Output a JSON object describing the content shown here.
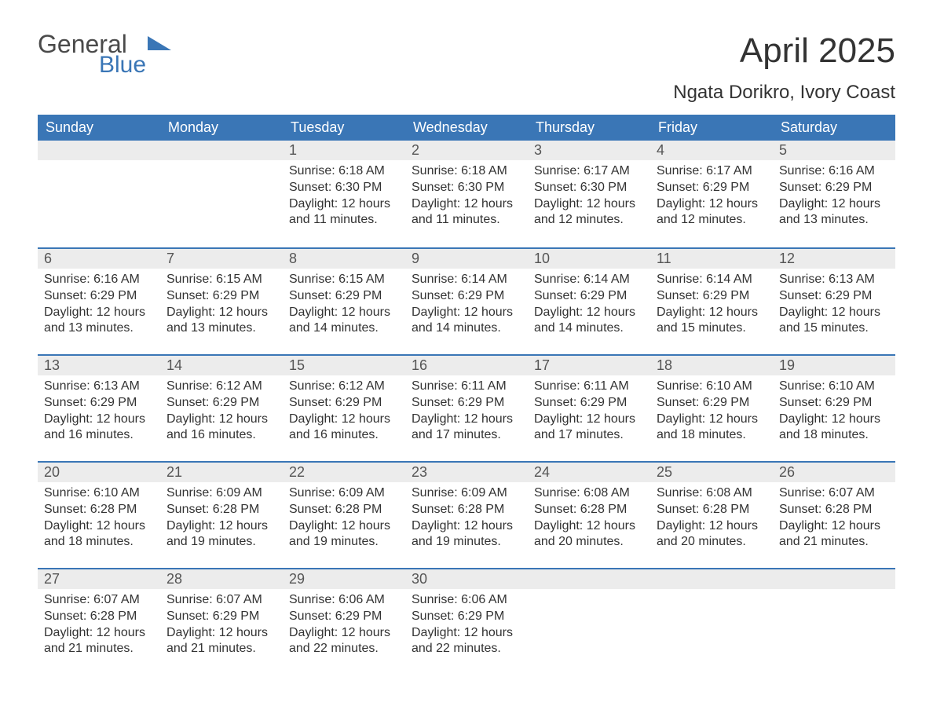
{
  "logo": {
    "text1": "General",
    "text2": "Blue",
    "shape_color": "#3a76b6"
  },
  "title": "April 2025",
  "location": "Ngata Dorikro, Ivory Coast",
  "colors": {
    "header_bg": "#3a76b6",
    "header_text": "#ffffff",
    "daynum_bg": "#ececec",
    "border_top": "#3a76b6",
    "body_text": "#333333",
    "page_bg": "#ffffff"
  },
  "typography": {
    "title_fontsize": 44,
    "subtitle_fontsize": 24,
    "header_fontsize": 18,
    "daynum_fontsize": 18,
    "body_fontsize": 16,
    "font_family": "Segoe UI"
  },
  "weekday_headers": [
    "Sunday",
    "Monday",
    "Tuesday",
    "Wednesday",
    "Thursday",
    "Friday",
    "Saturday"
  ],
  "weeks": [
    [
      null,
      null,
      {
        "day": "1",
        "sunrise": "Sunrise: 6:18 AM",
        "sunset": "Sunset: 6:30 PM",
        "daylight1": "Daylight: 12 hours",
        "daylight2": "and 11 minutes."
      },
      {
        "day": "2",
        "sunrise": "Sunrise: 6:18 AM",
        "sunset": "Sunset: 6:30 PM",
        "daylight1": "Daylight: 12 hours",
        "daylight2": "and 11 minutes."
      },
      {
        "day": "3",
        "sunrise": "Sunrise: 6:17 AM",
        "sunset": "Sunset: 6:30 PM",
        "daylight1": "Daylight: 12 hours",
        "daylight2": "and 12 minutes."
      },
      {
        "day": "4",
        "sunrise": "Sunrise: 6:17 AM",
        "sunset": "Sunset: 6:29 PM",
        "daylight1": "Daylight: 12 hours",
        "daylight2": "and 12 minutes."
      },
      {
        "day": "5",
        "sunrise": "Sunrise: 6:16 AM",
        "sunset": "Sunset: 6:29 PM",
        "daylight1": "Daylight: 12 hours",
        "daylight2": "and 13 minutes."
      }
    ],
    [
      {
        "day": "6",
        "sunrise": "Sunrise: 6:16 AM",
        "sunset": "Sunset: 6:29 PM",
        "daylight1": "Daylight: 12 hours",
        "daylight2": "and 13 minutes."
      },
      {
        "day": "7",
        "sunrise": "Sunrise: 6:15 AM",
        "sunset": "Sunset: 6:29 PM",
        "daylight1": "Daylight: 12 hours",
        "daylight2": "and 13 minutes."
      },
      {
        "day": "8",
        "sunrise": "Sunrise: 6:15 AM",
        "sunset": "Sunset: 6:29 PM",
        "daylight1": "Daylight: 12 hours",
        "daylight2": "and 14 minutes."
      },
      {
        "day": "9",
        "sunrise": "Sunrise: 6:14 AM",
        "sunset": "Sunset: 6:29 PM",
        "daylight1": "Daylight: 12 hours",
        "daylight2": "and 14 minutes."
      },
      {
        "day": "10",
        "sunrise": "Sunrise: 6:14 AM",
        "sunset": "Sunset: 6:29 PM",
        "daylight1": "Daylight: 12 hours",
        "daylight2": "and 14 minutes."
      },
      {
        "day": "11",
        "sunrise": "Sunrise: 6:14 AM",
        "sunset": "Sunset: 6:29 PM",
        "daylight1": "Daylight: 12 hours",
        "daylight2": "and 15 minutes."
      },
      {
        "day": "12",
        "sunrise": "Sunrise: 6:13 AM",
        "sunset": "Sunset: 6:29 PM",
        "daylight1": "Daylight: 12 hours",
        "daylight2": "and 15 minutes."
      }
    ],
    [
      {
        "day": "13",
        "sunrise": "Sunrise: 6:13 AM",
        "sunset": "Sunset: 6:29 PM",
        "daylight1": "Daylight: 12 hours",
        "daylight2": "and 16 minutes."
      },
      {
        "day": "14",
        "sunrise": "Sunrise: 6:12 AM",
        "sunset": "Sunset: 6:29 PM",
        "daylight1": "Daylight: 12 hours",
        "daylight2": "and 16 minutes."
      },
      {
        "day": "15",
        "sunrise": "Sunrise: 6:12 AM",
        "sunset": "Sunset: 6:29 PM",
        "daylight1": "Daylight: 12 hours",
        "daylight2": "and 16 minutes."
      },
      {
        "day": "16",
        "sunrise": "Sunrise: 6:11 AM",
        "sunset": "Sunset: 6:29 PM",
        "daylight1": "Daylight: 12 hours",
        "daylight2": "and 17 minutes."
      },
      {
        "day": "17",
        "sunrise": "Sunrise: 6:11 AM",
        "sunset": "Sunset: 6:29 PM",
        "daylight1": "Daylight: 12 hours",
        "daylight2": "and 17 minutes."
      },
      {
        "day": "18",
        "sunrise": "Sunrise: 6:10 AM",
        "sunset": "Sunset: 6:29 PM",
        "daylight1": "Daylight: 12 hours",
        "daylight2": "and 18 minutes."
      },
      {
        "day": "19",
        "sunrise": "Sunrise: 6:10 AM",
        "sunset": "Sunset: 6:29 PM",
        "daylight1": "Daylight: 12 hours",
        "daylight2": "and 18 minutes."
      }
    ],
    [
      {
        "day": "20",
        "sunrise": "Sunrise: 6:10 AM",
        "sunset": "Sunset: 6:28 PM",
        "daylight1": "Daylight: 12 hours",
        "daylight2": "and 18 minutes."
      },
      {
        "day": "21",
        "sunrise": "Sunrise: 6:09 AM",
        "sunset": "Sunset: 6:28 PM",
        "daylight1": "Daylight: 12 hours",
        "daylight2": "and 19 minutes."
      },
      {
        "day": "22",
        "sunrise": "Sunrise: 6:09 AM",
        "sunset": "Sunset: 6:28 PM",
        "daylight1": "Daylight: 12 hours",
        "daylight2": "and 19 minutes."
      },
      {
        "day": "23",
        "sunrise": "Sunrise: 6:09 AM",
        "sunset": "Sunset: 6:28 PM",
        "daylight1": "Daylight: 12 hours",
        "daylight2": "and 19 minutes."
      },
      {
        "day": "24",
        "sunrise": "Sunrise: 6:08 AM",
        "sunset": "Sunset: 6:28 PM",
        "daylight1": "Daylight: 12 hours",
        "daylight2": "and 20 minutes."
      },
      {
        "day": "25",
        "sunrise": "Sunrise: 6:08 AM",
        "sunset": "Sunset: 6:28 PM",
        "daylight1": "Daylight: 12 hours",
        "daylight2": "and 20 minutes."
      },
      {
        "day": "26",
        "sunrise": "Sunrise: 6:07 AM",
        "sunset": "Sunset: 6:28 PM",
        "daylight1": "Daylight: 12 hours",
        "daylight2": "and 21 minutes."
      }
    ],
    [
      {
        "day": "27",
        "sunrise": "Sunrise: 6:07 AM",
        "sunset": "Sunset: 6:28 PM",
        "daylight1": "Daylight: 12 hours",
        "daylight2": "and 21 minutes."
      },
      {
        "day": "28",
        "sunrise": "Sunrise: 6:07 AM",
        "sunset": "Sunset: 6:29 PM",
        "daylight1": "Daylight: 12 hours",
        "daylight2": "and 21 minutes."
      },
      {
        "day": "29",
        "sunrise": "Sunrise: 6:06 AM",
        "sunset": "Sunset: 6:29 PM",
        "daylight1": "Daylight: 12 hours",
        "daylight2": "and 22 minutes."
      },
      {
        "day": "30",
        "sunrise": "Sunrise: 6:06 AM",
        "sunset": "Sunset: 6:29 PM",
        "daylight1": "Daylight: 12 hours",
        "daylight2": "and 22 minutes."
      },
      null,
      null,
      null
    ]
  ]
}
